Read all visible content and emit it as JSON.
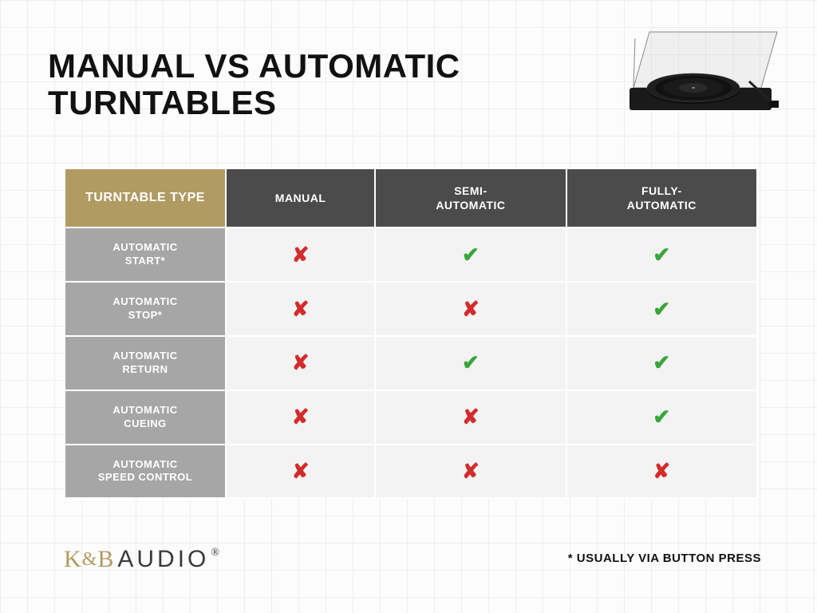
{
  "title_line1": "MANUAL VS AUTOMATIC",
  "title_line2": "TURNTABLES",
  "table": {
    "header_first": "TURNTABLE TYPE",
    "columns": [
      "MANUAL",
      "SEMI-\nAUTOMATIC",
      "FULLY-\nAUTOMATIC"
    ],
    "rows": [
      {
        "label": "AUTOMATIC START*",
        "values": [
          false,
          true,
          true
        ]
      },
      {
        "label": "AUTOMATIC STOP*",
        "values": [
          false,
          false,
          true
        ]
      },
      {
        "label": "AUTOMATIC RETURN",
        "values": [
          false,
          true,
          true
        ]
      },
      {
        "label": "AUTOMATIC CUEING",
        "values": [
          false,
          false,
          true
        ]
      },
      {
        "label": "AUTOMATIC SPEED CONTROL",
        "values": [
          false,
          false,
          false
        ]
      }
    ]
  },
  "symbols": {
    "check": "✔",
    "cross": "✘"
  },
  "colors": {
    "gold": "#b09b63",
    "dark_header": "#4b4b4b",
    "row_label_bg": "#a6a6a6",
    "cell_bg": "#f3f3f3",
    "check": "#39a53b",
    "cross": "#d32b2b",
    "grid": "#eeeeee",
    "page_bg": "#fcfcfc"
  },
  "footnote": "* USUALLY VIA BUTTON PRESS",
  "logo": {
    "k": "K",
    "amp": "&",
    "b": "B",
    "audio": "AUDIO",
    "reg": "®"
  }
}
